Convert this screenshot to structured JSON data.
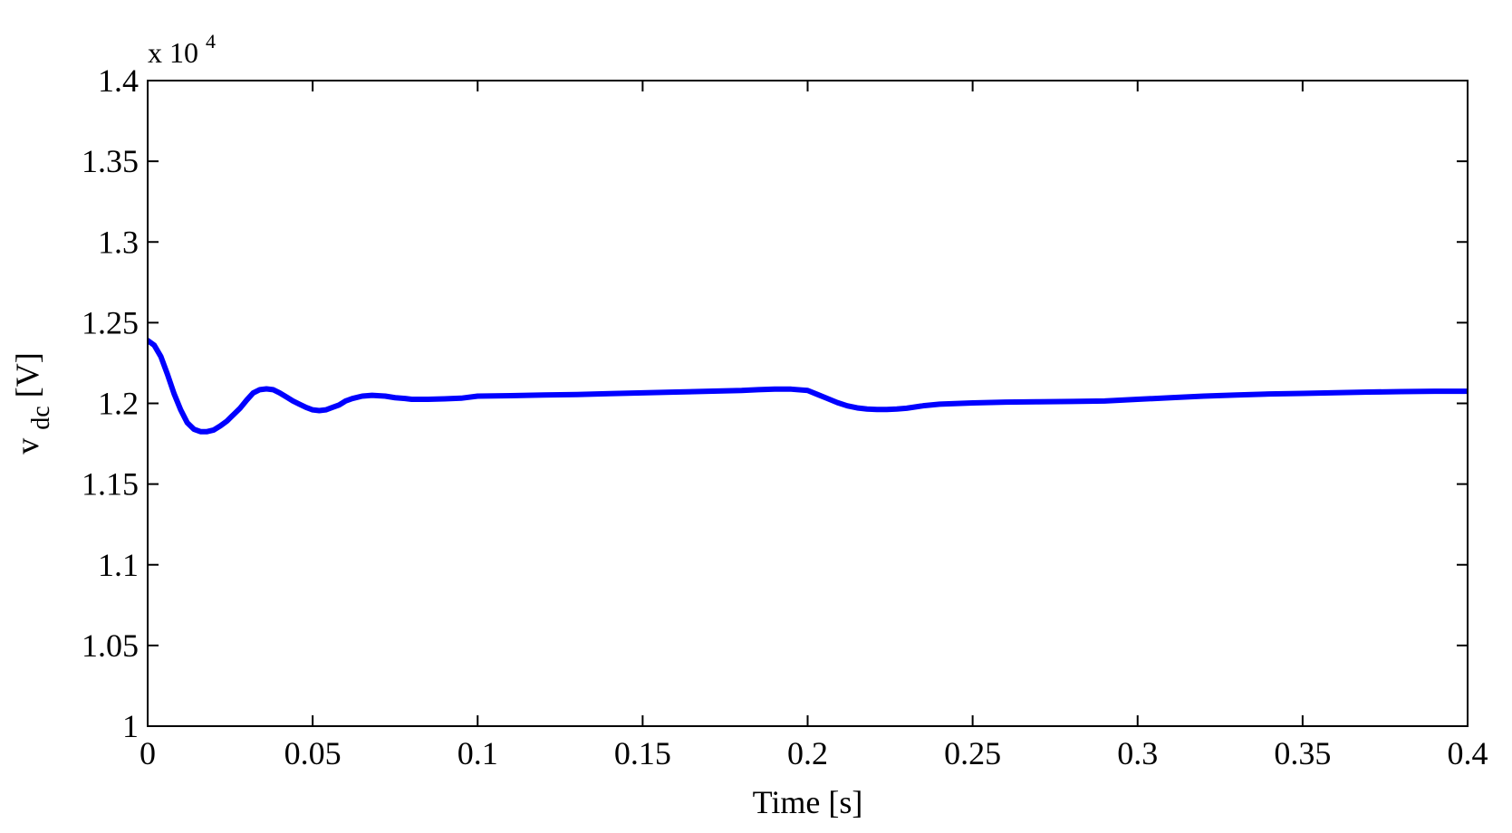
{
  "chart_data": {
    "type": "line",
    "title": "",
    "xlabel": "Time [s]",
    "ylabel": {
      "base": "v",
      "subscript": "dc",
      "unit": " [V]"
    },
    "y_exponent": {
      "prefix": "x 10",
      "power": "4"
    },
    "xlim": [
      0,
      0.4
    ],
    "ylim": [
      1.0,
      1.4
    ],
    "y_scale_factor": 10000,
    "grid": false,
    "legend": "none",
    "x_ticks": [
      0,
      0.05,
      0.1,
      0.15,
      0.2,
      0.25,
      0.3,
      0.35,
      0.4
    ],
    "x_tick_labels": [
      "0",
      "0.05",
      "0.1",
      "0.15",
      "0.2",
      "0.25",
      "0.3",
      "0.35",
      "0.4"
    ],
    "y_ticks": [
      1.0,
      1.05,
      1.1,
      1.15,
      1.2,
      1.25,
      1.3,
      1.35,
      1.4
    ],
    "y_tick_labels": [
      "1",
      "1.05",
      "1.1",
      "1.15",
      "1.2",
      "1.25",
      "1.3",
      "1.35",
      "1.4"
    ],
    "series": [
      {
        "color": "#0000ff",
        "x": [
          0,
          0.002,
          0.004,
          0.006,
          0.008,
          0.01,
          0.012,
          0.014,
          0.016,
          0.018,
          0.02,
          0.022,
          0.024,
          0.026,
          0.028,
          0.03,
          0.032,
          0.034,
          0.036,
          0.038,
          0.04,
          0.042,
          0.044,
          0.046,
          0.048,
          0.05,
          0.052,
          0.054,
          0.056,
          0.058,
          0.06,
          0.062,
          0.065,
          0.068,
          0.072,
          0.075,
          0.078,
          0.08,
          0.085,
          0.09,
          0.095,
          0.1,
          0.11,
          0.12,
          0.13,
          0.14,
          0.15,
          0.16,
          0.17,
          0.18,
          0.185,
          0.19,
          0.195,
          0.2,
          0.203,
          0.206,
          0.209,
          0.212,
          0.215,
          0.218,
          0.221,
          0.224,
          0.227,
          0.23,
          0.235,
          0.24,
          0.25,
          0.26,
          0.27,
          0.28,
          0.29,
          0.3,
          0.31,
          0.32,
          0.33,
          0.34,
          0.35,
          0.36,
          0.37,
          0.38,
          0.39,
          0.4
        ],
        "y": [
          1.239,
          1.236,
          1.229,
          1.218,
          1.206,
          1.196,
          1.188,
          1.184,
          1.1825,
          1.1825,
          1.1835,
          1.186,
          1.189,
          1.193,
          1.197,
          1.202,
          1.2065,
          1.2085,
          1.209,
          1.2085,
          1.2065,
          1.204,
          1.2015,
          1.1995,
          1.1975,
          1.196,
          1.1955,
          1.196,
          1.1975,
          1.199,
          1.2015,
          1.203,
          1.2045,
          1.205,
          1.2045,
          1.2035,
          1.203,
          1.2025,
          1.2025,
          1.2028,
          1.2032,
          1.2045,
          1.2048,
          1.2052,
          1.2055,
          1.206,
          1.2065,
          1.207,
          1.2075,
          1.208,
          1.2085,
          1.2088,
          1.2088,
          1.208,
          1.2055,
          1.203,
          1.2005,
          1.1985,
          1.1972,
          1.1965,
          1.1962,
          1.1962,
          1.1965,
          1.197,
          1.1985,
          1.1995,
          1.2003,
          1.2008,
          1.201,
          1.2012,
          1.2015,
          1.2025,
          1.2035,
          1.2045,
          1.2052,
          1.2058,
          1.2062,
          1.2066,
          1.207,
          1.2073,
          1.2075,
          1.2075
        ]
      }
    ]
  }
}
